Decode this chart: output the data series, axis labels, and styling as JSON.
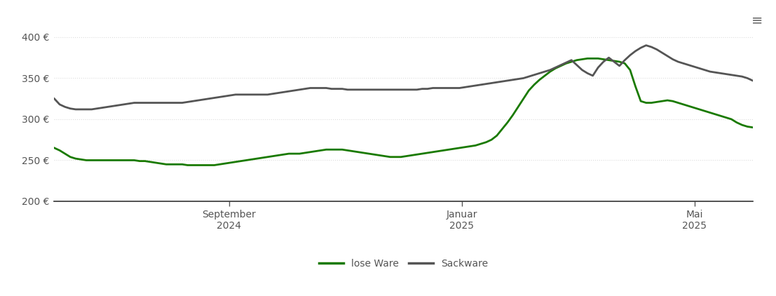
{
  "ylim": [
    200,
    420
  ],
  "yticks": [
    200,
    250,
    300,
    350,
    400
  ],
  "ytick_labels": [
    "200 €",
    "250 €",
    "300 €",
    "350 €",
    "400 €"
  ],
  "grid_color": "#dddddd",
  "background_color": "#ffffff",
  "line_lose_color": "#1a7a00",
  "line_sack_color": "#555555",
  "legend_labels": [
    "lose Ware",
    "Sackware"
  ],
  "xtick_labels": [
    "September\n2024",
    "Januar\n2025",
    "Mai\n2025"
  ],
  "lose_ware": [
    265,
    262,
    258,
    254,
    252,
    251,
    250,
    250,
    250,
    250,
    250,
    250,
    250,
    250,
    250,
    250,
    249,
    249,
    248,
    247,
    246,
    245,
    245,
    245,
    245,
    244,
    244,
    244,
    244,
    244,
    244,
    245,
    246,
    247,
    248,
    249,
    250,
    251,
    252,
    253,
    254,
    255,
    256,
    257,
    258,
    258,
    258,
    259,
    260,
    261,
    262,
    263,
    263,
    263,
    263,
    262,
    261,
    260,
    259,
    258,
    257,
    256,
    255,
    254,
    254,
    254,
    255,
    256,
    257,
    258,
    259,
    260,
    261,
    262,
    263,
    264,
    265,
    266,
    267,
    268,
    270,
    272,
    275,
    280,
    288,
    296,
    305,
    315,
    325,
    335,
    342,
    348,
    353,
    358,
    362,
    365,
    368,
    370,
    372,
    373,
    374,
    374,
    374,
    373,
    372,
    371,
    370,
    368,
    360,
    340,
    322,
    320,
    320,
    321,
    322,
    323,
    322,
    320,
    318,
    316,
    314,
    312,
    310,
    308,
    306,
    304,
    302,
    300,
    296,
    293,
    291,
    290
  ],
  "sackware": [
    325,
    318,
    315,
    313,
    312,
    312,
    312,
    312,
    313,
    314,
    315,
    316,
    317,
    318,
    319,
    320,
    320,
    320,
    320,
    320,
    320,
    320,
    320,
    320,
    320,
    321,
    322,
    323,
    324,
    325,
    326,
    327,
    328,
    329,
    330,
    330,
    330,
    330,
    330,
    330,
    330,
    331,
    332,
    333,
    334,
    335,
    336,
    337,
    338,
    338,
    338,
    338,
    337,
    337,
    337,
    336,
    336,
    336,
    336,
    336,
    336,
    336,
    336,
    336,
    336,
    336,
    336,
    336,
    336,
    337,
    337,
    338,
    338,
    338,
    338,
    338,
    338,
    339,
    340,
    341,
    342,
    343,
    344,
    345,
    346,
    347,
    348,
    349,
    350,
    352,
    354,
    356,
    358,
    360,
    363,
    366,
    369,
    372,
    366,
    360,
    356,
    353,
    363,
    370,
    375,
    370,
    365,
    372,
    378,
    383,
    387,
    390,
    388,
    385,
    381,
    377,
    373,
    370,
    368,
    366,
    364,
    362,
    360,
    358,
    357,
    356,
    355,
    354,
    353,
    352,
    350,
    347
  ]
}
